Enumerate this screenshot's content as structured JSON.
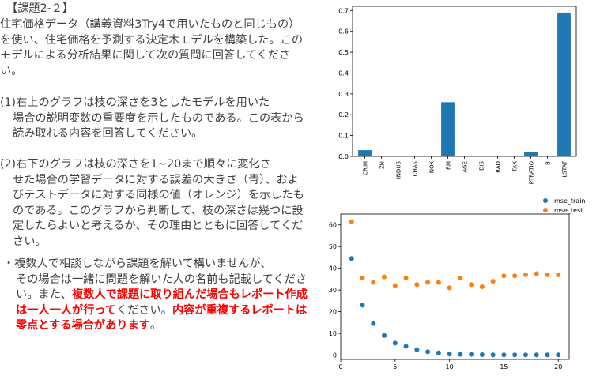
{
  "document": {
    "heading": "【課題2-２】",
    "intro": "住宅価格データ（講義資料3Try4で用いたものと同じもの）を使い、住宅価格を予測する決定木モデルを構築した。このモデルによる分析結果に関して次の質問に回答してください。",
    "q1": {
      "first": "(1)右上のグラフは枝の深さを3としたモデルを用いた",
      "rest": "場合の説明変数の重要度を示したものである。この表から読み取れる内容を回答してください。"
    },
    "q2": {
      "first": "(2)右下のグラフは枝の深さを1~20まで順々に変化さ",
      "rest": "せた場合の学習データに対する誤差の大きさ（青）、およびテストデータに対する同様の値（オレンジ）を示したものである。このグラフから判断して、枝の深さは幾つに設定したらよいと考えるか、その理由とともに回答してください。"
    },
    "notes": {
      "first": "・複数人で相談しながら課題を解いて構いませんが、",
      "rest_a": "その場合は一緒に問題を解いた人の名前も記載してください。また、",
      "red_a": "複数人で課題に取り組んだ場合もレポート作成は一人一人が行って",
      "rest_b": "ください。",
      "red_b": "内容が重複するレポートは零点とする場合があります",
      "rest_c": "。"
    }
  },
  "chart_data": [
    {
      "type": "bar",
      "categories": [
        "CRIM",
        "ZN",
        "INDUS",
        "CHAS",
        "NOX",
        "RM",
        "AGE",
        "DIS",
        "RAD",
        "TAX",
        "PTRATIO",
        "B",
        "LSTAT"
      ],
      "values": [
        0.03,
        0,
        0,
        0,
        0,
        0.26,
        0,
        0,
        0,
        0,
        0.02,
        0,
        0.69
      ],
      "ylim": [
        0,
        0.72
      ],
      "yticks": [
        "0.0",
        "0.1",
        "0.2",
        "0.3",
        "0.4",
        "0.5",
        "0.6",
        "0.7"
      ],
      "color": "#1f77b4",
      "grid": false
    },
    {
      "type": "scatter",
      "x": [
        1,
        2,
        3,
        4,
        5,
        6,
        7,
        8,
        9,
        10,
        11,
        12,
        13,
        14,
        15,
        16,
        17,
        18,
        19,
        20
      ],
      "series": [
        {
          "name": "mse_train",
          "color": "#1f77b4",
          "values": [
            44.5,
            23,
            14.5,
            9,
            5.5,
            4,
            2.5,
            1.5,
            1,
            0.5,
            0.3,
            0.3,
            0.2,
            0.1,
            0.1,
            0.1,
            0.1,
            0.1,
            0.1,
            0.1
          ]
        },
        {
          "name": "mse_test",
          "color": "#ff7f0e",
          "values": [
            61.5,
            35.5,
            33.5,
            36,
            32,
            35.5,
            32.5,
            33.5,
            33.5,
            31,
            35.5,
            32.5,
            31.5,
            34,
            36.5,
            36.5,
            37,
            37.5,
            37,
            37
          ]
        }
      ],
      "xlim": [
        0,
        21
      ],
      "ylim": [
        -2,
        65
      ],
      "xticks": [
        "0",
        "5",
        "10",
        "15",
        "20"
      ],
      "yticks": [
        "0",
        "10",
        "20",
        "30",
        "40",
        "50",
        "60"
      ],
      "legend": "top-right",
      "grid": false
    }
  ]
}
